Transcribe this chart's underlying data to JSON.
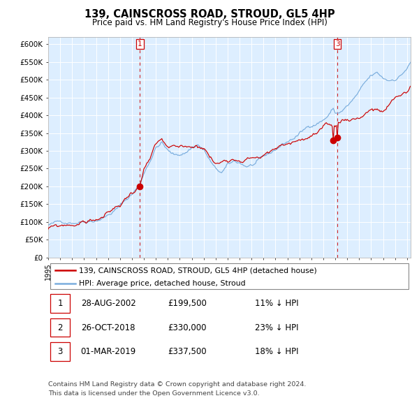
{
  "title": "139, CAINSCROSS ROAD, STROUD, GL5 4HP",
  "subtitle": "Price paid vs. HM Land Registry's House Price Index (HPI)",
  "ylim": [
    0,
    620000
  ],
  "yticks": [
    0,
    50000,
    100000,
    150000,
    200000,
    250000,
    300000,
    350000,
    400000,
    450000,
    500000,
    550000,
    600000
  ],
  "ytick_labels": [
    "£0",
    "£50K",
    "£100K",
    "£150K",
    "£200K",
    "£250K",
    "£300K",
    "£350K",
    "£400K",
    "£450K",
    "£500K",
    "£550K",
    "£600K"
  ],
  "hpi_color": "#7aaddd",
  "price_color": "#cc0000",
  "background_color": "#ddeeff",
  "sale1_date": 2002.67,
  "sale1_price": 199500,
  "sale2_date": 2018.83,
  "sale2_price": 330000,
  "sale3_date": 2019.17,
  "sale3_price": 337500,
  "legend_line1": "139, CAINSCROSS ROAD, STROUD, GL5 4HP (detached house)",
  "legend_line2": "HPI: Average price, detached house, Stroud",
  "table_rows": [
    [
      "1",
      "28-AUG-2002",
      "£199,500",
      "11% ↓ HPI"
    ],
    [
      "2",
      "26-OCT-2018",
      "£330,000",
      "23% ↓ HPI"
    ],
    [
      "3",
      "01-MAR-2019",
      "£337,500",
      "18% ↓ HPI"
    ]
  ],
  "footnote1": "Contains HM Land Registry data © Crown copyright and database right 2024.",
  "footnote2": "This data is licensed under the Open Government Licence v3.0.",
  "start_year": 1995.0,
  "end_year": 2025.3,
  "hpi_ctrl_x": [
    1995.0,
    1996.0,
    1997.0,
    1998.0,
    1999.0,
    2000.0,
    2001.0,
    2002.0,
    2002.67,
    2003.0,
    2004.0,
    2004.5,
    2005.0,
    2005.5,
    2006.0,
    2006.5,
    2007.0,
    2007.5,
    2008.0,
    2008.5,
    2009.0,
    2009.5,
    2010.0,
    2010.5,
    2011.0,
    2011.5,
    2012.0,
    2012.5,
    2013.0,
    2013.5,
    2014.0,
    2014.5,
    2015.0,
    2015.5,
    2016.0,
    2016.5,
    2017.0,
    2017.5,
    2018.0,
    2018.5,
    2018.83,
    2019.0,
    2019.5,
    2020.0,
    2020.5,
    2021.0,
    2021.5,
    2022.0,
    2022.5,
    2023.0,
    2023.5,
    2024.0,
    2024.5,
    2025.0,
    2025.3
  ],
  "hpi_ctrl_y": [
    92000,
    97000,
    104000,
    112000,
    122000,
    138000,
    162000,
    195000,
    224000,
    255000,
    330000,
    345000,
    320000,
    305000,
    308000,
    315000,
    330000,
    340000,
    325000,
    295000,
    265000,
    255000,
    272000,
    280000,
    278000,
    270000,
    272000,
    278000,
    285000,
    292000,
    305000,
    318000,
    328000,
    338000,
    350000,
    362000,
    375000,
    385000,
    395000,
    410000,
    428000,
    412000,
    418000,
    432000,
    448000,
    468000,
    488000,
    505000,
    510000,
    495000,
    490000,
    498000,
    510000,
    530000,
    545000
  ],
  "prop_ctrl_x": [
    1995.0,
    1996.0,
    1997.0,
    1998.0,
    1999.0,
    2000.0,
    2001.0,
    2001.5,
    2002.0,
    2002.67,
    2003.0,
    2003.5,
    2004.0,
    2004.5,
    2005.0,
    2006.0,
    2007.0,
    2008.0,
    2008.5,
    2009.0,
    2009.5,
    2010.0,
    2011.0,
    2012.0,
    2013.0,
    2014.0,
    2015.0,
    2016.0,
    2017.0,
    2018.0,
    2018.83,
    2019.17,
    2019.5,
    2020.0,
    2021.0,
    2022.0,
    2023.0,
    2024.0,
    2025.0,
    2025.3
  ],
  "prop_ctrl_y": [
    80000,
    82000,
    88000,
    96000,
    104000,
    118000,
    140000,
    158000,
    178000,
    199500,
    240000,
    265000,
    295000,
    305000,
    278000,
    268000,
    275000,
    280000,
    255000,
    232000,
    238000,
    252000,
    262000,
    272000,
    278000,
    290000,
    305000,
    318000,
    328000,
    338000,
    330000,
    337500,
    348000,
    355000,
    365000,
    395000,
    380000,
    410000,
    430000,
    445000
  ]
}
